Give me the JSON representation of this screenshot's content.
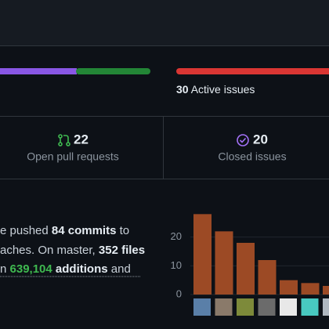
{
  "issues": {
    "count": "30",
    "label": "Active issues"
  },
  "stats": [
    {
      "count": "22",
      "label": "Open pull requests"
    },
    {
      "count": "20",
      "label": "Closed issues"
    }
  ],
  "summary": {
    "line1": {
      "pre": "e pushed ",
      "strong": "84 commits",
      "post": " to"
    },
    "line2": {
      "pre": "aches. On master, ",
      "strong": "352 files"
    },
    "line3": {
      "pre": "n ",
      "number": "639,104",
      "strong": " additions",
      "post": " and"
    }
  },
  "chart_data": {
    "type": "bar",
    "values": [
      28,
      22,
      18,
      12,
      5,
      4,
      3
    ],
    "color": "#9c4a25",
    "ylim": [
      0,
      30
    ],
    "yticks": [
      0,
      10,
      20
    ]
  }
}
